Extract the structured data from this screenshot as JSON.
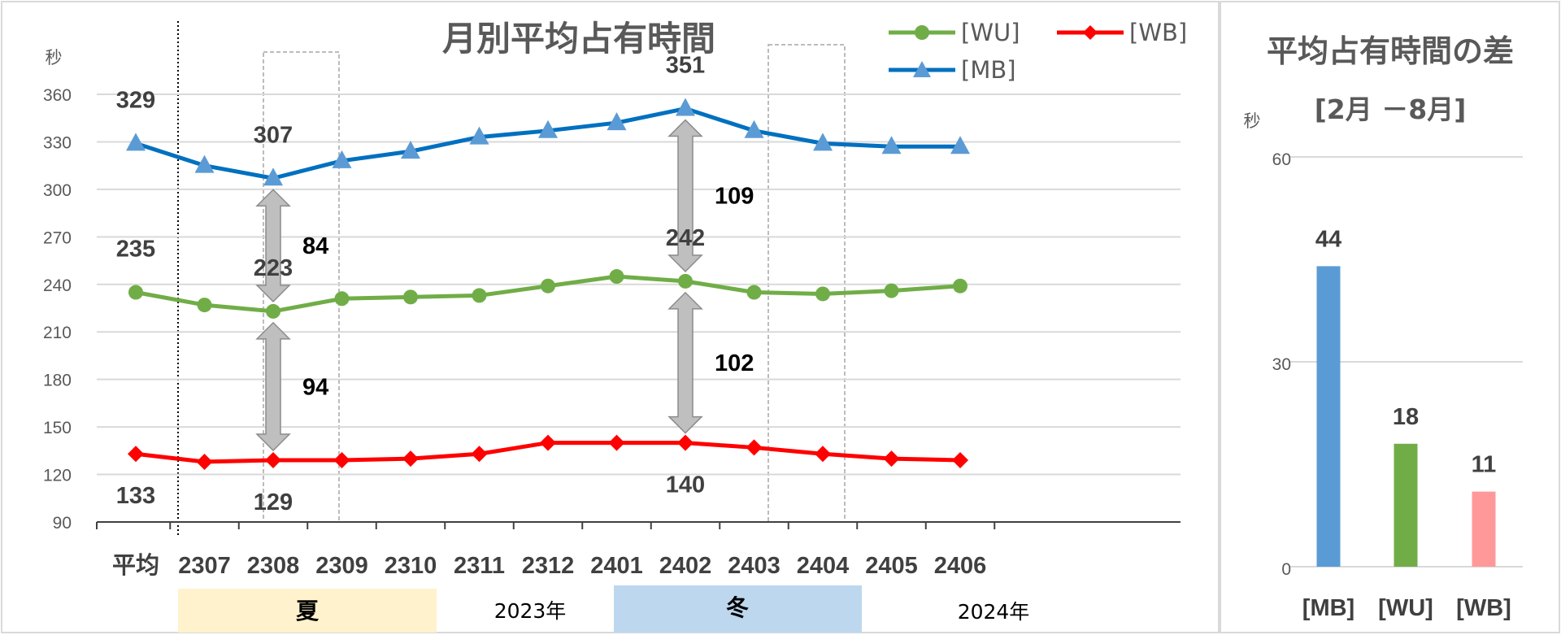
{
  "left_chart": {
    "title": "月別平均占有時間",
    "y_unit": "秒",
    "legend": {
      "wu": "[WU]",
      "wb": "[WB]",
      "mb": "[MB]"
    }
  },
  "right_chart": {
    "title": "平均占有時間の差",
    "subtitle": "[2月 －8月]",
    "y_unit": "秒"
  },
  "seasons": {
    "summer": "夏",
    "winter": "冬"
  },
  "years": {
    "y2023": "2023年",
    "y2024": "2024年"
  },
  "colors": {
    "mb": "#0070c0",
    "mb_marker": "#5b9bd5",
    "wu": "#70ad47",
    "wb": "#ff0000",
    "bar_mb": "#5b9bd5",
    "bar_wu": "#70ad47",
    "bar_wb": "#ff9999",
    "summer_bg": "#fff2cc",
    "winter_bg": "#bdd7ee"
  },
  "chart_data": [
    {
      "type": "line",
      "title": "月別平均占有時間",
      "ylabel": "秒",
      "categories": [
        "平均",
        "2307",
        "2308",
        "2309",
        "2310",
        "2311",
        "2312",
        "2401",
        "2402",
        "2403",
        "2404",
        "2405",
        "2406"
      ],
      "ylim": [
        90,
        360
      ],
      "yticks": [
        90,
        120,
        150,
        180,
        210,
        240,
        270,
        300,
        330,
        360
      ],
      "grid": true,
      "legend_position": "top-right",
      "series": [
        {
          "name": "[MB]",
          "key": "mb",
          "marker": "triangle",
          "values": [
            329,
            315,
            307,
            318,
            324,
            333,
            337,
            342,
            351,
            337,
            329,
            327,
            327
          ]
        },
        {
          "name": "[WU]",
          "key": "wu",
          "marker": "circle",
          "values": [
            235,
            227,
            223,
            231,
            232,
            233,
            239,
            245,
            242,
            235,
            234,
            236,
            239
          ]
        },
        {
          "name": "[WB]",
          "key": "wb",
          "marker": "diamond",
          "values": [
            133,
            128,
            129,
            129,
            130,
            133,
            140,
            140,
            140,
            137,
            133,
            130,
            129
          ]
        }
      ],
      "data_labels": [
        {
          "series": "mb",
          "index": 0,
          "text": "329"
        },
        {
          "series": "mb",
          "index": 2,
          "text": "307"
        },
        {
          "series": "mb",
          "index": 8,
          "text": "351"
        },
        {
          "series": "wu",
          "index": 0,
          "text": "235"
        },
        {
          "series": "wu",
          "index": 2,
          "text": "223"
        },
        {
          "series": "wu",
          "index": 8,
          "text": "242"
        },
        {
          "series": "wb",
          "index": 0,
          "text": "133"
        },
        {
          "series": "wb",
          "index": 2,
          "text": "129"
        },
        {
          "series": "wb",
          "index": 8,
          "text": "140"
        }
      ],
      "differences": [
        {
          "index": 2,
          "from": "wu",
          "to": "mb",
          "text": "84"
        },
        {
          "index": 2,
          "from": "wb",
          "to": "wu",
          "text": "94"
        },
        {
          "index": 8,
          "from": "wu",
          "to": "mb",
          "text": "109"
        },
        {
          "index": 8,
          "from": "wb",
          "to": "wu",
          "text": "102"
        }
      ]
    },
    {
      "type": "bar",
      "title": "平均占有時間の差",
      "subtitle": "[2月 －8月]",
      "ylabel": "秒",
      "categories": [
        "[MB]",
        "[WU]",
        "[WB]"
      ],
      "values": [
        44,
        18,
        11
      ],
      "ylim": [
        0,
        60
      ],
      "yticks": [
        0,
        30,
        60
      ],
      "grid": true
    }
  ]
}
